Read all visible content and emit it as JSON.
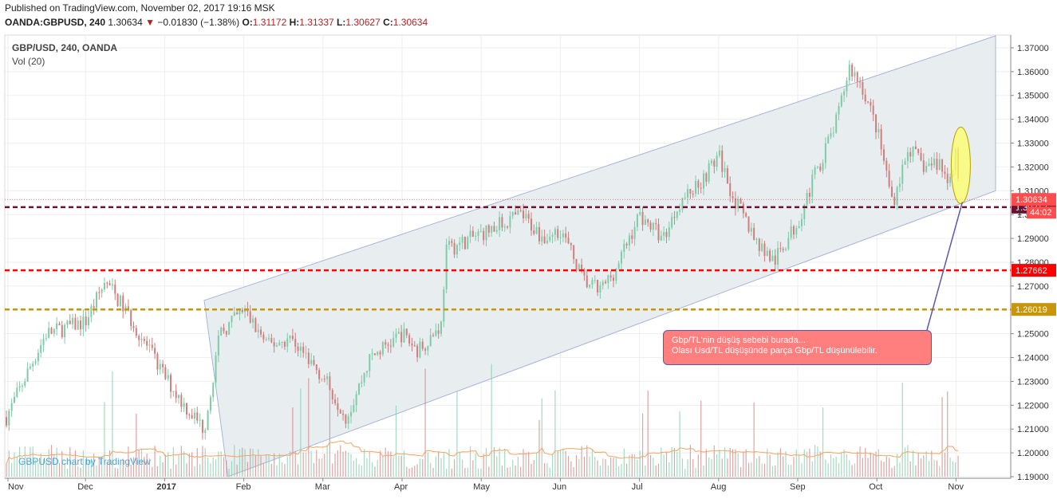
{
  "header": {
    "published": "Published on TradingView.com, November 02, 2017 19:16 MSK",
    "symbol": "OANDA:GBPUSD, 240",
    "last": "1.30634",
    "change": "−0.01830 (−1.38%)",
    "o_label": "O:",
    "o_value": "1.31172",
    "h_label": "H:",
    "h_value": "1.31337",
    "l_label": "L:",
    "l_value": "1.30627",
    "c_label": "C:",
    "c_value": "1.30634"
  },
  "legend": {
    "title": "GBP/USD, 240, OANDA",
    "volume": "Vol (20)"
  },
  "watermark": "GBPUSD chart by TradingView",
  "annotation": {
    "line1": "Gbp/TL'nin düşüş sebebi burada...",
    "line2": "Olası Usd/TL düşüşünde parça Gbp/TL düşünülebilir."
  },
  "colors": {
    "up": "#7fcba7",
    "down": "#d07d7d",
    "channel_fill": "#e8eef0",
    "bg": "#ffffff"
  },
  "chart_data": {
    "type": "candlestick",
    "timeframe": "240",
    "y_range": [
      1.19,
      1.375
    ],
    "y_ticks": [
      "1.19000",
      "1.20000",
      "1.21000",
      "1.22000",
      "1.23000",
      "1.24000",
      "1.25000",
      "1.26000",
      "1.27000",
      "1.28000",
      "1.29000",
      "1.30000",
      "1.31000",
      "1.32000",
      "1.33000",
      "1.34000",
      "1.35000",
      "1.36000",
      "1.37000"
    ],
    "x_labels": [
      "Nov",
      "Dec",
      "2017",
      "Feb",
      "Mar",
      "Apr",
      "May",
      "Jun",
      "Jul",
      "Aug",
      "Sep",
      "Oct",
      "Nov"
    ],
    "close_path_months": [
      {
        "m": 0,
        "v": 1.215
      },
      {
        "m": 0.5,
        "v": 1.25
      },
      {
        "m": 1.0,
        "v": 1.255
      },
      {
        "m": 1.25,
        "v": 1.272
      },
      {
        "m": 1.5,
        "v": 1.26
      },
      {
        "m": 2.0,
        "v": 1.232
      },
      {
        "m": 2.25,
        "v": 1.22
      },
      {
        "m": 2.5,
        "v": 1.21
      },
      {
        "m": 2.7,
        "v": 1.25
      },
      {
        "m": 3.0,
        "v": 1.26
      },
      {
        "m": 3.3,
        "v": 1.245
      },
      {
        "m": 3.6,
        "v": 1.248
      },
      {
        "m": 4.0,
        "v": 1.232
      },
      {
        "m": 4.3,
        "v": 1.215
      },
      {
        "m": 4.6,
        "v": 1.24
      },
      {
        "m": 5.0,
        "v": 1.25
      },
      {
        "m": 5.2,
        "v": 1.243
      },
      {
        "m": 5.5,
        "v": 1.254
      },
      {
        "m": 5.55,
        "v": 1.285
      },
      {
        "m": 6.0,
        "v": 1.292
      },
      {
        "m": 6.5,
        "v": 1.3
      },
      {
        "m": 6.8,
        "v": 1.29
      },
      {
        "m": 7.0,
        "v": 1.294
      },
      {
        "m": 7.3,
        "v": 1.272
      },
      {
        "m": 7.5,
        "v": 1.268
      },
      {
        "m": 7.7,
        "v": 1.277
      },
      {
        "m": 8.0,
        "v": 1.3
      },
      {
        "m": 8.3,
        "v": 1.29
      },
      {
        "m": 8.5,
        "v": 1.305
      },
      {
        "m": 8.8,
        "v": 1.315
      },
      {
        "m": 9.0,
        "v": 1.325
      },
      {
        "m": 9.2,
        "v": 1.306
      },
      {
        "m": 9.5,
        "v": 1.288
      },
      {
        "m": 9.7,
        "v": 1.28
      },
      {
        "m": 10.0,
        "v": 1.297
      },
      {
        "m": 10.2,
        "v": 1.315
      },
      {
        "m": 10.5,
        "v": 1.34
      },
      {
        "m": 10.65,
        "v": 1.362
      },
      {
        "m": 10.8,
        "v": 1.355
      },
      {
        "m": 11.0,
        "v": 1.336
      },
      {
        "m": 11.2,
        "v": 1.305
      },
      {
        "m": 11.4,
        "v": 1.328
      },
      {
        "m": 11.6,
        "v": 1.32
      },
      {
        "m": 11.8,
        "v": 1.322
      },
      {
        "m": 11.9,
        "v": 1.312
      },
      {
        "m": 12.0,
        "v": 1.329
      },
      {
        "m": 12.05,
        "v": 1.306
      }
    ],
    "channel": {
      "upper": [
        {
          "m": 2.5,
          "v": 1.264
        },
        {
          "m": 12.5,
          "v": 1.375
        }
      ],
      "lower": [
        {
          "m": 2.8,
          "v": 1.19
        },
        {
          "m": 12.5,
          "v": 1.31
        }
      ]
    },
    "horizontal_levels": [
      {
        "value": 1.30313,
        "label": "1.30313",
        "color": "#6b1030",
        "style": "dashed"
      },
      {
        "value": 1.27662,
        "label": "1.27662",
        "color": "#ff0000",
        "style": "dashed"
      },
      {
        "value": 1.26019,
        "label": "1.26019",
        "color": "#c8960a",
        "style": "dashed"
      }
    ],
    "last_price": {
      "value": 1.30634,
      "label": "1.30634",
      "timer": "44:02",
      "color": "#ff4d4d"
    },
    "highlight_ellipse": {
      "m": 12.0,
      "v_center": 1.325
    }
  }
}
